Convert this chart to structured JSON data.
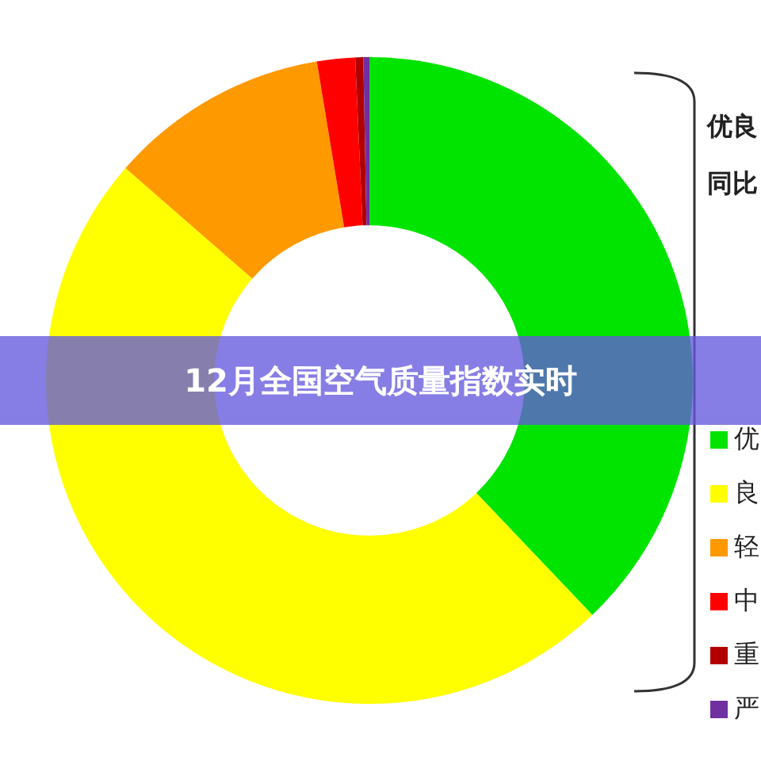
{
  "chart_data": {
    "type": "donut",
    "title": "12月全国空气质量指数实时",
    "categories": [
      "优",
      "良",
      "轻",
      "中",
      "重",
      "严"
    ],
    "values": [
      37.9,
      48.5,
      11.0,
      1.9,
      0.4,
      0.3
    ],
    "colors": [
      "#00e400",
      "#ffff00",
      "#ff9900",
      "#ff0000",
      "#b20000",
      "#7030a0"
    ],
    "legend": "right",
    "annotations": [
      "优良",
      "同比"
    ]
  }
}
